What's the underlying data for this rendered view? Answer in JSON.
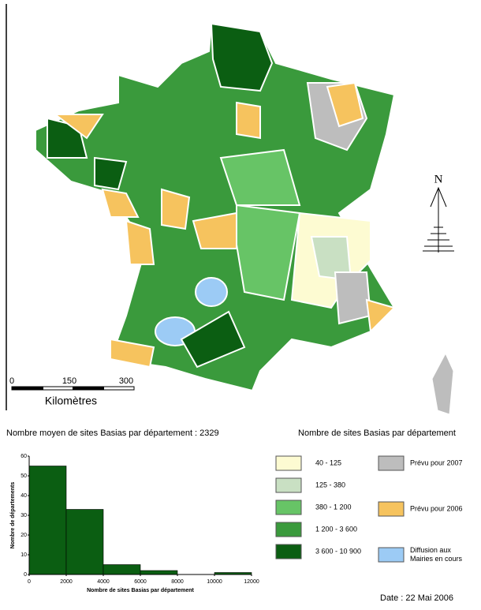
{
  "map": {
    "scale_labels": [
      "0",
      "150",
      "300"
    ],
    "scale_unit": "Kilomètres",
    "north": "N"
  },
  "chart_data": {
    "type": "histogram",
    "title": "Nombre moyen de sites Basias par département : 2329",
    "x_label": "Nombre de sites Basias par département",
    "y_label": "Nombre de départements",
    "bins": [
      0,
      2000,
      4000,
      6000,
      8000,
      10000,
      12000
    ],
    "values": [
      55,
      33,
      5,
      2,
      0,
      1
    ],
    "color": "#0b5e12",
    "xlim": [
      0,
      12000
    ],
    "ylim": [
      0,
      60
    ],
    "xticks": [
      0,
      2000,
      4000,
      6000,
      8000,
      10000,
      12000
    ],
    "yticks": [
      0,
      10,
      20,
      30,
      40,
      50,
      60
    ]
  },
  "legend": {
    "title": "Nombre de sites Basias par département",
    "classes": [
      {
        "label": "40 - 125",
        "color": "#fdfbd2"
      },
      {
        "label": "125 - 380",
        "color": "#c9e0c3"
      },
      {
        "label": "380 - 1 200",
        "color": "#67c466"
      },
      {
        "label": "1 200 - 3 600",
        "color": "#3a9a3c"
      },
      {
        "label": "3 600 - 10 900",
        "color": "#0b5e12"
      }
    ],
    "status": [
      {
        "label": "Prévu pour 2007",
        "color": "#bdbdbd"
      },
      {
        "label": "Prévu pour 2006",
        "color": "#f6c35e"
      },
      {
        "label": "Diffusion aux Mairies en cours",
        "color": "#9ccbf5"
      }
    ]
  },
  "date": "Date : 22 Mai 2006"
}
